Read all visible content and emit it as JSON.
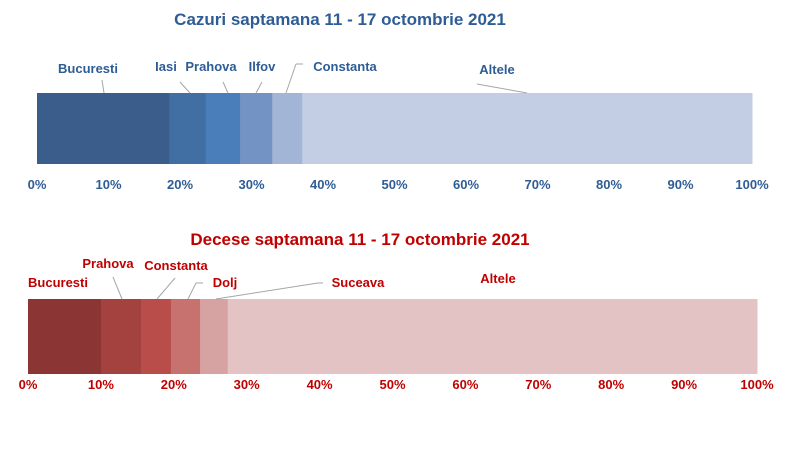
{
  "chart_data": [
    {
      "type": "bar",
      "orientation": "horizontal-stacked-100",
      "title": "Cazuri saptamana 11 - 17 octombrie 2021",
      "title_color": "#2E5C94",
      "categories": [
        "Bucuresti",
        "Iasi",
        "Prahova",
        "Ilfov",
        "Constanta",
        "Altele"
      ],
      "values": [
        18.5,
        5.1,
        4.8,
        4.5,
        4.2,
        62.9
      ],
      "colors": [
        "#3A5D8C",
        "#426FA3",
        "#4A7EBB",
        "#7293C4",
        "#A3B5D6",
        "#C3CEE4"
      ],
      "xlim": [
        0,
        100
      ],
      "ticks": [
        "0%",
        "10%",
        "20%",
        "30%",
        "40%",
        "50%",
        "60%",
        "70%",
        "80%",
        "90%",
        "100%"
      ],
      "unit": "%"
    },
    {
      "type": "bar",
      "orientation": "horizontal-stacked-100",
      "title": "Decese saptamana 11 - 17 octombrie 2021",
      "title_color": "#C00000",
      "categories": [
        "Bucuresti",
        "Prahova",
        "Constanta",
        "Dolj",
        "Suceava",
        "Altele"
      ],
      "values": [
        10.0,
        5.5,
        4.1,
        4.0,
        3.8,
        72.6
      ],
      "colors": [
        "#8B3535",
        "#A3423F",
        "#B84D4A",
        "#C7726F",
        "#D6A3A2",
        "#E3C3C4"
      ],
      "xlim": [
        0,
        100
      ],
      "ticks": [
        "0%",
        "10%",
        "20%",
        "30%",
        "40%",
        "50%",
        "60%",
        "70%",
        "80%",
        "90%",
        "100%"
      ],
      "unit": "%"
    }
  ]
}
